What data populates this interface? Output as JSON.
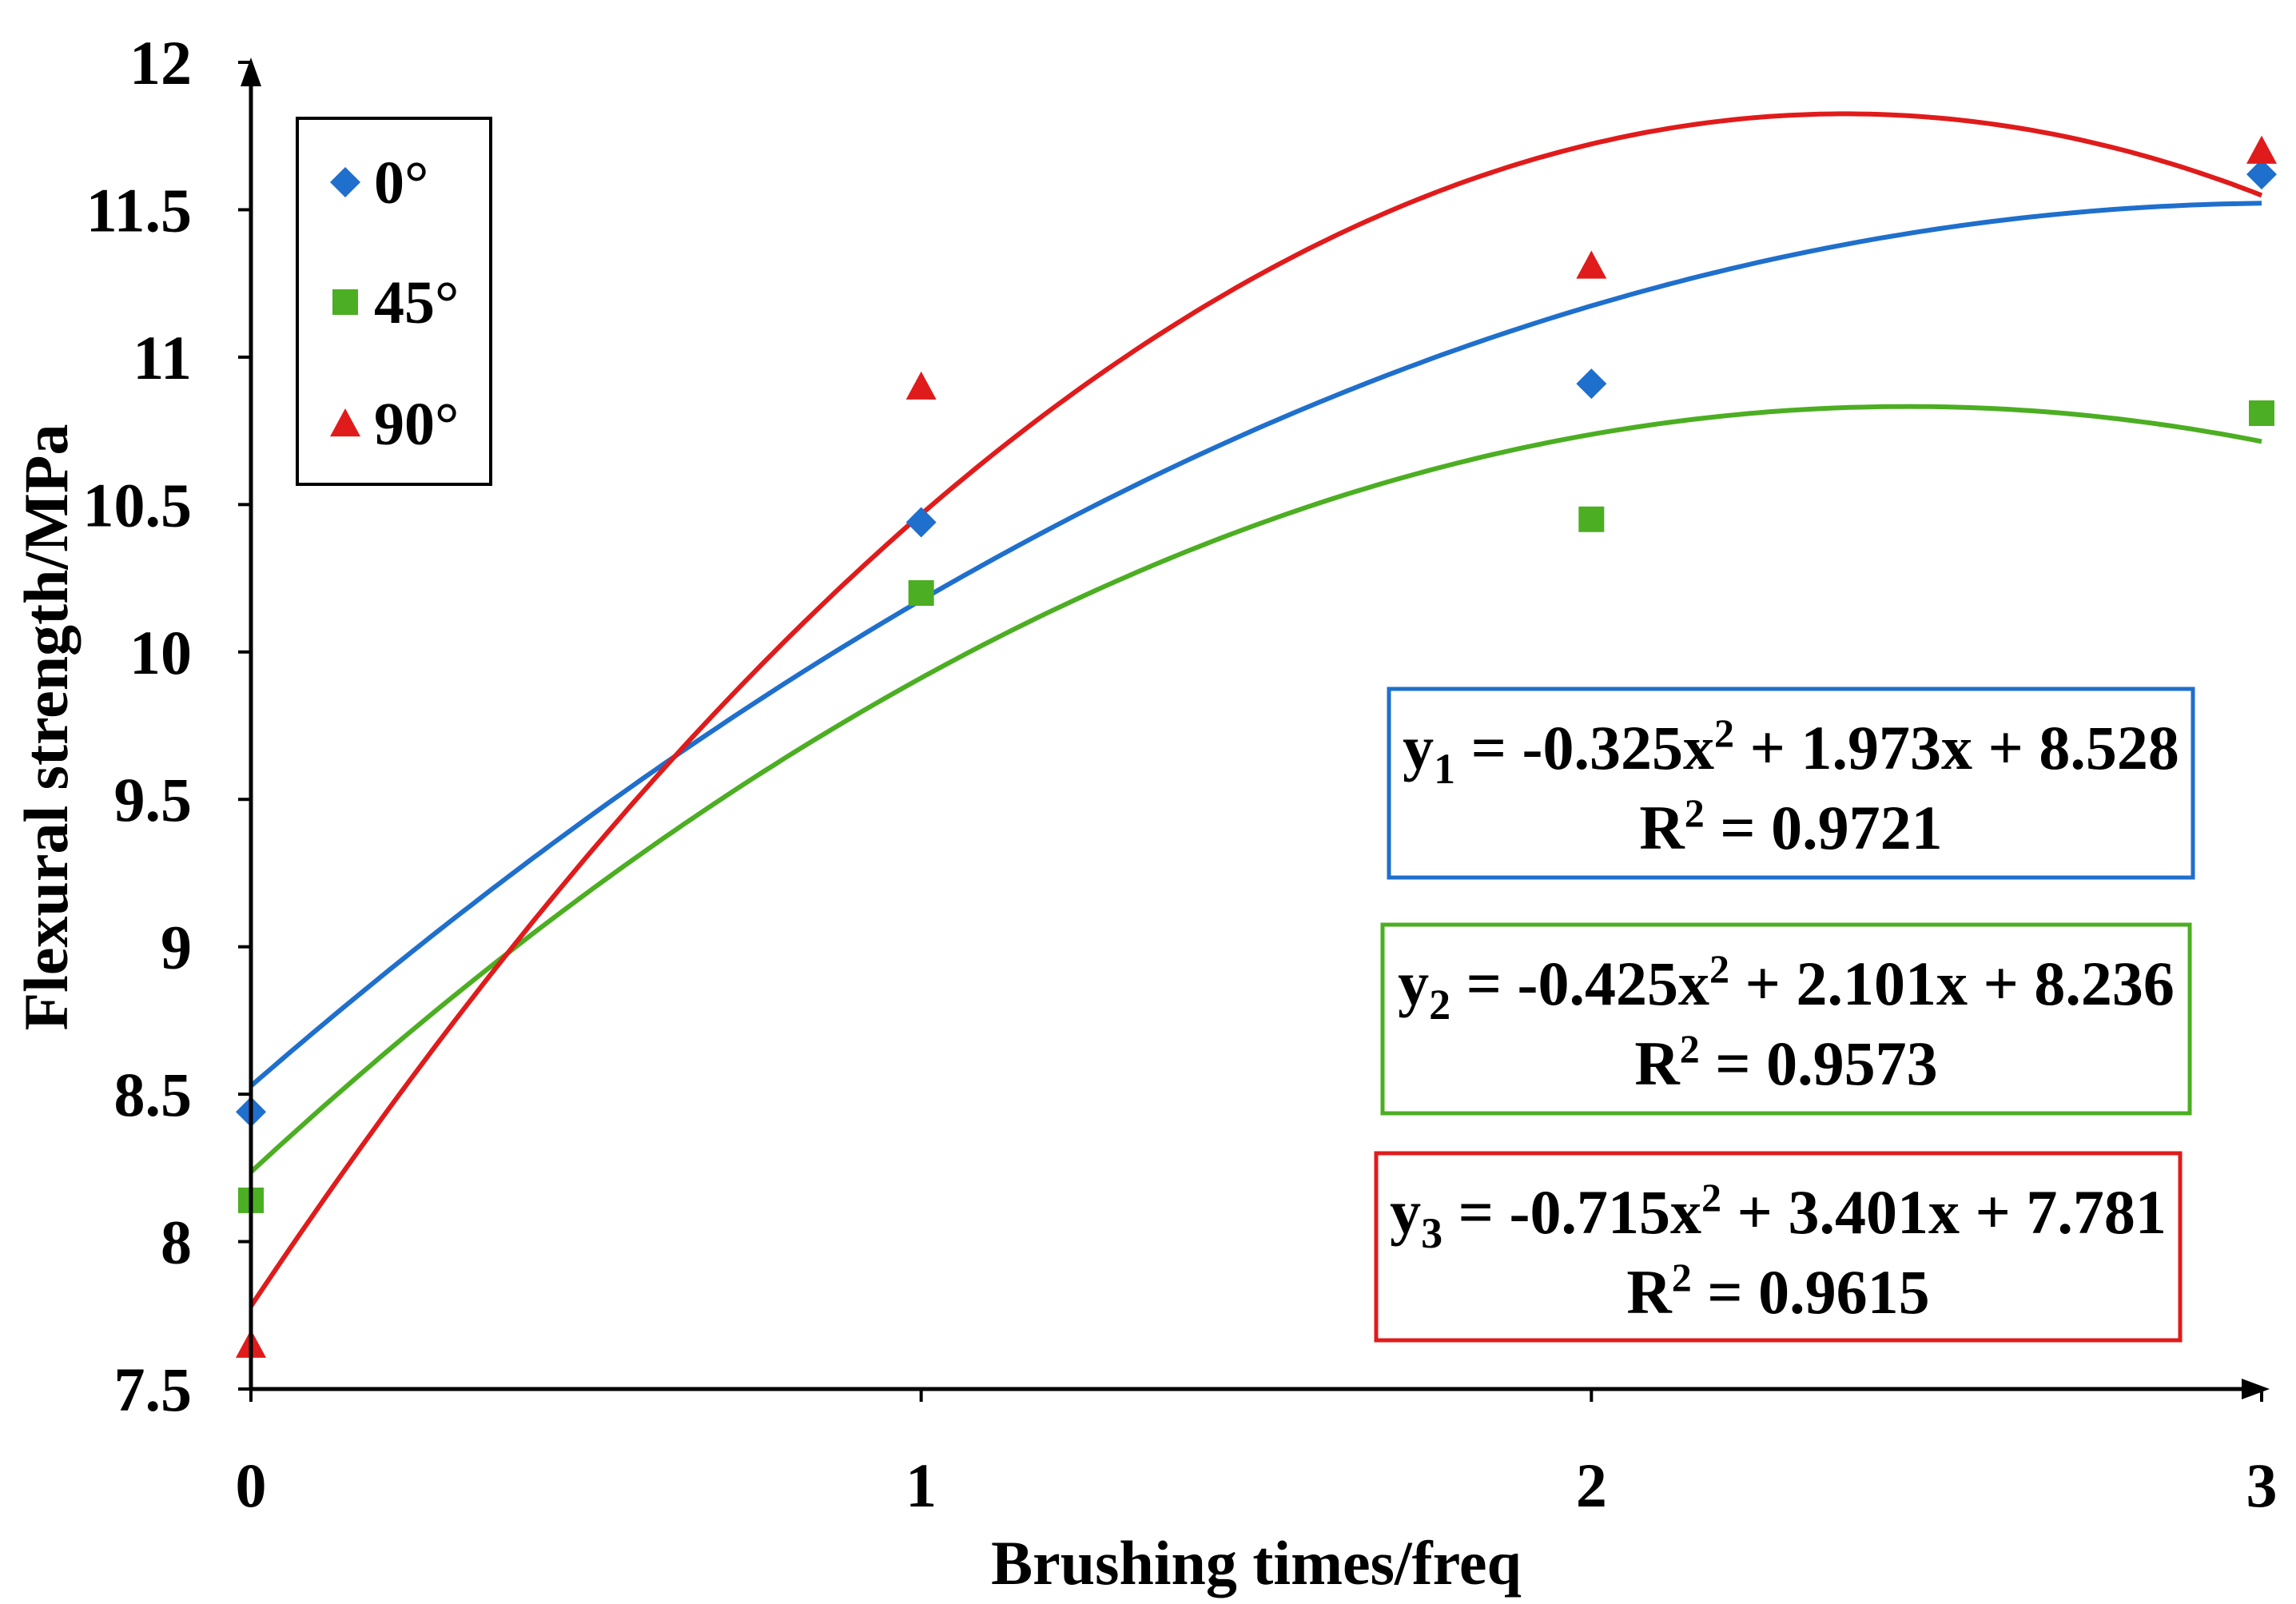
{
  "chart_data": {
    "type": "scatter",
    "title": "",
    "xlabel": "Brushing times/freq",
    "ylabel": "Flexural strength/MPa",
    "xlim": [
      0,
      3
    ],
    "ylim": [
      7.5,
      12
    ],
    "x_ticks": [
      "0",
      "1",
      "2",
      "3"
    ],
    "y_ticks": [
      "7.5",
      "8",
      "8.5",
      "9",
      "9.5",
      "10",
      "10.5",
      "11",
      "11.5",
      "12"
    ],
    "legend_position": "top-left",
    "series": [
      {
        "name": "0°",
        "marker": "diamond",
        "color": "#1f6fcc",
        "x": [
          0,
          1,
          2,
          3
        ],
        "y": [
          8.44,
          10.44,
          10.91,
          11.62
        ],
        "fit": {
          "a": -0.325,
          "b": 1.973,
          "c": 8.528
        },
        "equation": {
          "lhs": "y",
          "sub": "1",
          "mid": " = -0.325x",
          "sup": "2",
          "rhs": " + 1.973x + 8.528"
        },
        "r2": {
          "lhs": "R",
          "sup": "2",
          "rhs": " = 0.9721"
        }
      },
      {
        "name": "45°",
        "marker": "square",
        "color": "#4cae22",
        "x": [
          0,
          1,
          2,
          3
        ],
        "y": [
          8.14,
          10.2,
          10.45,
          10.81
        ],
        "fit": {
          "a": -0.425,
          "b": 2.101,
          "c": 8.236
        },
        "equation": {
          "lhs": "y",
          "sub": "2",
          "mid": " = -0.425x",
          "sup": "2",
          "rhs": " + 2.101x + 8.236"
        },
        "r2": {
          "lhs": "R",
          "sup": "2",
          "rhs": " = 0.9573"
        }
      },
      {
        "name": "90°",
        "marker": "triangle",
        "color": "#e01b1b",
        "x": [
          0,
          1,
          2,
          3
        ],
        "y": [
          7.65,
          10.9,
          11.31,
          11.7
        ],
        "fit": {
          "a": -0.715,
          "b": 3.401,
          "c": 7.781
        },
        "equation": {
          "lhs": "y",
          "sub": "3",
          "mid": " = -0.715x",
          "sup": "2",
          "rhs": " + 3.401x + 7.781"
        },
        "r2": {
          "lhs": "R",
          "sup": "2",
          "rhs": " = 0.9615"
        }
      }
    ]
  }
}
